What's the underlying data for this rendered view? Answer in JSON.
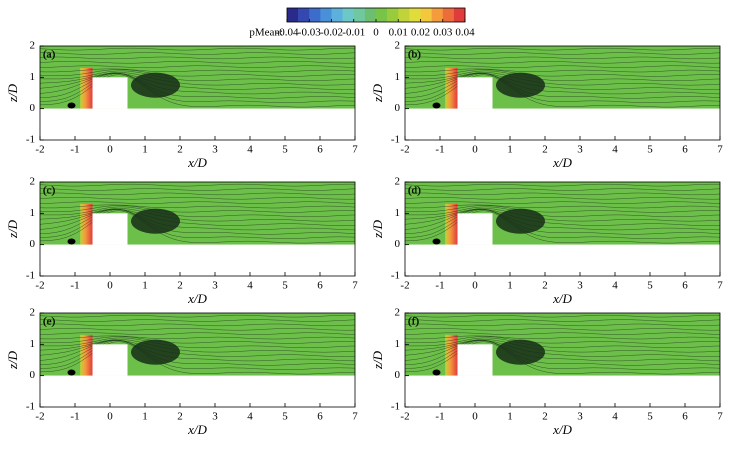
{
  "colorbar": {
    "label": "pMean:",
    "lim": [
      -0.04,
      0.04
    ],
    "ticks": [
      -0.04,
      -0.03,
      -0.02,
      -0.01,
      0,
      0.01,
      0.02,
      0.03,
      0.04
    ],
    "colors": [
      "#2a2a8c",
      "#3448b0",
      "#3c6ccc",
      "#4a90d8",
      "#5cb0dc",
      "#6cc8c8",
      "#70c8a0",
      "#6cbf70",
      "#78c448",
      "#98cc3c",
      "#c0d43a",
      "#e0dc3c",
      "#f4c83c",
      "#f49c3c",
      "#ec6c3c",
      "#e03c3c"
    ]
  },
  "chart_data": [
    {
      "type": "contour",
      "panel_label": "(a)",
      "xlabel": "x/D",
      "ylabel": "z/D",
      "xlim": [
        -2,
        7
      ],
      "ylim": [
        -1,
        2
      ],
      "xticks": [
        -2,
        -1,
        0,
        1,
        2,
        3,
        4,
        5,
        6,
        7
      ],
      "yticks": [
        -1,
        0,
        1,
        2
      ]
    },
    {
      "type": "contour",
      "panel_label": "(b)",
      "xlabel": "x/D",
      "ylabel": "z/D",
      "xlim": [
        -2,
        7
      ],
      "ylim": [
        -1,
        2
      ],
      "xticks": [
        -2,
        -1,
        0,
        1,
        2,
        3,
        4,
        5,
        6,
        7
      ],
      "yticks": [
        -1,
        0,
        1,
        2
      ]
    },
    {
      "type": "contour",
      "panel_label": "(c)",
      "xlabel": "x/D",
      "ylabel": "z/D",
      "xlim": [
        -2,
        7
      ],
      "ylim": [
        -1,
        2
      ],
      "xticks": [
        -2,
        -1,
        0,
        1,
        2,
        3,
        4,
        5,
        6,
        7
      ],
      "yticks": [
        -1,
        0,
        1,
        2
      ]
    },
    {
      "type": "contour",
      "panel_label": "(d)",
      "xlabel": "x/D",
      "ylabel": "z/D",
      "xlim": [
        -2,
        7
      ],
      "ylim": [
        -1,
        2
      ],
      "xticks": [
        -2,
        -1,
        0,
        1,
        2,
        3,
        4,
        5,
        6,
        7
      ],
      "yticks": [
        -1,
        0,
        1,
        2
      ]
    },
    {
      "type": "contour",
      "panel_label": "(e)",
      "xlabel": "x/D",
      "ylabel": "z/D",
      "xlim": [
        -2,
        7
      ],
      "ylim": [
        -1,
        2
      ],
      "xticks": [
        -2,
        -1,
        0,
        1,
        2,
        3,
        4,
        5,
        6,
        7
      ],
      "yticks": [
        -1,
        0,
        1,
        2
      ]
    },
    {
      "type": "contour",
      "panel_label": "(f)",
      "xlabel": "x/D",
      "ylabel": "z/D",
      "xlim": [
        -2,
        7
      ],
      "ylim": [
        -1,
        2
      ],
      "xticks": [
        -2,
        -1,
        0,
        1,
        2,
        3,
        4,
        5,
        6,
        7
      ],
      "yticks": [
        -1,
        0,
        1,
        2
      ]
    }
  ]
}
